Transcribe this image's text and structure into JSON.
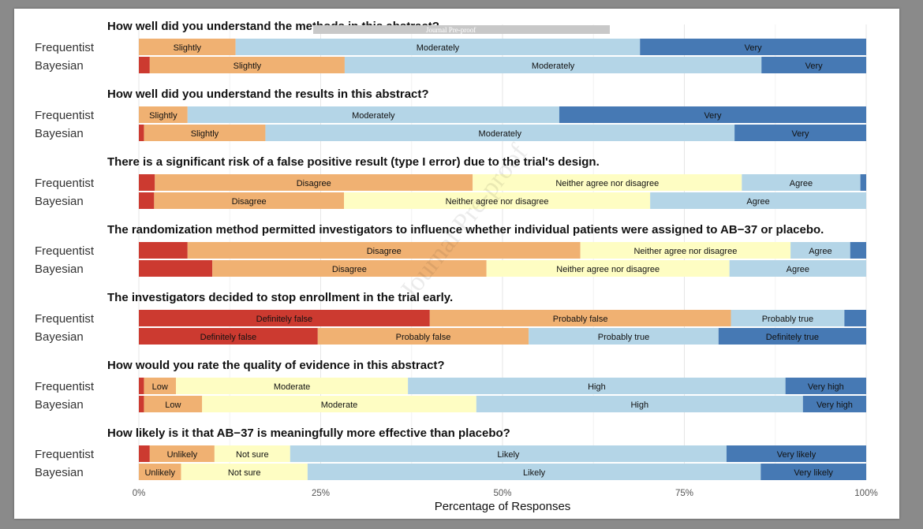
{
  "watermark": {
    "banner_text": "Journal Pre-proof",
    "diagonal_text": "Journal Pre-proof"
  },
  "colors": {
    "strong_negative": "#cc3a30",
    "negative": "#f0b172",
    "neutral": "#fefdc3",
    "positive": "#b4d5e7",
    "strong_positive": "#4679b4"
  },
  "chart_data": {
    "type": "bar",
    "orientation": "horizontal-stacked",
    "xlabel": "Percentage of Responses",
    "xlim": [
      0,
      100
    ],
    "xticks": [
      "0%",
      "25%",
      "50%",
      "75%",
      "100%"
    ],
    "row_labels": [
      "Frequentist",
      "Bayesian"
    ],
    "questions": [
      {
        "title": "How well did you understand the methods in this abstract?",
        "rows": [
          {
            "name": "Frequentist",
            "segments": [
              {
                "label": "",
                "value": 0,
                "color": "strong_negative"
              },
              {
                "label": "Slightly",
                "value": 13.3,
                "color": "negative"
              },
              {
                "label": "Moderately",
                "value": 55.6,
                "color": "positive"
              },
              {
                "label": "Very",
                "value": 31.1,
                "color": "strong_positive"
              }
            ]
          },
          {
            "name": "Bayesian",
            "segments": [
              {
                "label": "",
                "value": 1.5,
                "color": "strong_negative"
              },
              {
                "label": "Slightly",
                "value": 26.8,
                "color": "negative"
              },
              {
                "label": "Moderately",
                "value": 57.3,
                "color": "positive"
              },
              {
                "label": "Very",
                "value": 14.4,
                "color": "strong_positive"
              }
            ]
          }
        ]
      },
      {
        "title": "How well did you understand the results in this abstract?",
        "rows": [
          {
            "name": "Frequentist",
            "segments": [
              {
                "label": "Slightly",
                "value": 6.7,
                "color": "negative"
              },
              {
                "label": "Moderately",
                "value": 51.1,
                "color": "positive"
              },
              {
                "label": "Very",
                "value": 42.2,
                "color": "strong_positive"
              }
            ]
          },
          {
            "name": "Bayesian",
            "segments": [
              {
                "label": "",
                "value": 0.7,
                "color": "strong_negative"
              },
              {
                "label": "Slightly",
                "value": 16.7,
                "color": "negative"
              },
              {
                "label": "Moderately",
                "value": 64.5,
                "color": "positive"
              },
              {
                "label": "Very",
                "value": 18.1,
                "color": "strong_positive"
              }
            ]
          }
        ]
      },
      {
        "title": "There is a significant risk of a false positive result (type I error) due to the trial's design.",
        "rows": [
          {
            "name": "Frequentist",
            "segments": [
              {
                "label": "",
                "value": 2.2,
                "color": "strong_negative"
              },
              {
                "label": "Disagree",
                "value": 43.7,
                "color": "negative"
              },
              {
                "label": "Neither agree nor disagree",
                "value": 37.0,
                "color": "neutral"
              },
              {
                "label": "Agree",
                "value": 16.3,
                "color": "positive"
              },
              {
                "label": "",
                "value": 0.8,
                "color": "strong_positive"
              }
            ]
          },
          {
            "name": "Bayesian",
            "segments": [
              {
                "label": "",
                "value": 2.1,
                "color": "strong_negative"
              },
              {
                "label": "Disagree",
                "value": 26.1,
                "color": "negative"
              },
              {
                "label": "Neither agree nor disagree",
                "value": 42.1,
                "color": "neutral"
              },
              {
                "label": "Agree",
                "value": 29.7,
                "color": "positive"
              }
            ]
          }
        ]
      },
      {
        "title": "The randomization method permitted investigators to influence whether individual patients were assigned to AB−37 or placebo.",
        "rows": [
          {
            "name": "Frequentist",
            "segments": [
              {
                "label": "",
                "value": 6.7,
                "color": "strong_negative"
              },
              {
                "label": "Disagree",
                "value": 54.0,
                "color": "negative"
              },
              {
                "label": "Neither agree nor disagree",
                "value": 28.9,
                "color": "neutral"
              },
              {
                "label": "Agree",
                "value": 8.2,
                "color": "positive"
              },
              {
                "label": "",
                "value": 2.2,
                "color": "strong_positive"
              }
            ]
          },
          {
            "name": "Bayesian",
            "segments": [
              {
                "label": "",
                "value": 10.1,
                "color": "strong_negative"
              },
              {
                "label": "Disagree",
                "value": 37.7,
                "color": "negative"
              },
              {
                "label": "Neither agree nor disagree",
                "value": 33.4,
                "color": "neutral"
              },
              {
                "label": "Agree",
                "value": 18.8,
                "color": "positive"
              }
            ]
          }
        ]
      },
      {
        "title": "The investigators decided to stop enrollment in the trial early.",
        "rows": [
          {
            "name": "Frequentist",
            "segments": [
              {
                "label": "Definitely false",
                "value": 40.0,
                "color": "strong_negative"
              },
              {
                "label": "Probably false",
                "value": 41.4,
                "color": "negative"
              },
              {
                "label": "Probably true",
                "value": 15.6,
                "color": "positive"
              },
              {
                "label": "",
                "value": 3.0,
                "color": "strong_positive"
              }
            ]
          },
          {
            "name": "Bayesian",
            "segments": [
              {
                "label": "Definitely false",
                "value": 24.6,
                "color": "strong_negative"
              },
              {
                "label": "Probably false",
                "value": 29.0,
                "color": "negative"
              },
              {
                "label": "Probably true",
                "value": 26.1,
                "color": "positive"
              },
              {
                "label": "Definitely true",
                "value": 20.3,
                "color": "strong_positive"
              }
            ]
          }
        ]
      },
      {
        "title": "How would you rate the quality of evidence in this abstract?",
        "rows": [
          {
            "name": "Frequentist",
            "segments": [
              {
                "label": "",
                "value": 0.7,
                "color": "strong_negative"
              },
              {
                "label": "Low",
                "value": 4.4,
                "color": "negative"
              },
              {
                "label": "Moderate",
                "value": 31.9,
                "color": "neutral"
              },
              {
                "label": "High",
                "value": 51.9,
                "color": "positive"
              },
              {
                "label": "Very high",
                "value": 11.1,
                "color": "strong_positive"
              }
            ]
          },
          {
            "name": "Bayesian",
            "segments": [
              {
                "label": "",
                "value": 0.7,
                "color": "strong_negative"
              },
              {
                "label": "Low",
                "value": 8.0,
                "color": "negative"
              },
              {
                "label": "Moderate",
                "value": 37.7,
                "color": "neutral"
              },
              {
                "label": "High",
                "value": 44.9,
                "color": "positive"
              },
              {
                "label": "Very high",
                "value": 8.7,
                "color": "strong_positive"
              }
            ]
          }
        ]
      },
      {
        "title": "How likely is it that AB−37 is meaningfully more effective than placebo?",
        "rows": [
          {
            "name": "Frequentist",
            "segments": [
              {
                "label": "",
                "value": 1.5,
                "color": "strong_negative"
              },
              {
                "label": "Unlikely",
                "value": 8.9,
                "color": "negative"
              },
              {
                "label": "Not sure",
                "value": 10.4,
                "color": "neutral"
              },
              {
                "label": "Likely",
                "value": 60.0,
                "color": "positive"
              },
              {
                "label": "Very likely",
                "value": 19.2,
                "color": "strong_positive"
              }
            ]
          },
          {
            "name": "Bayesian",
            "segments": [
              {
                "label": "Unlikely",
                "value": 5.8,
                "color": "negative"
              },
              {
                "label": "Not sure",
                "value": 17.4,
                "color": "neutral"
              },
              {
                "label": "Likely",
                "value": 62.3,
                "color": "positive"
              },
              {
                "label": "Very likely",
                "value": 14.5,
                "color": "strong_positive"
              }
            ]
          }
        ]
      }
    ]
  }
}
